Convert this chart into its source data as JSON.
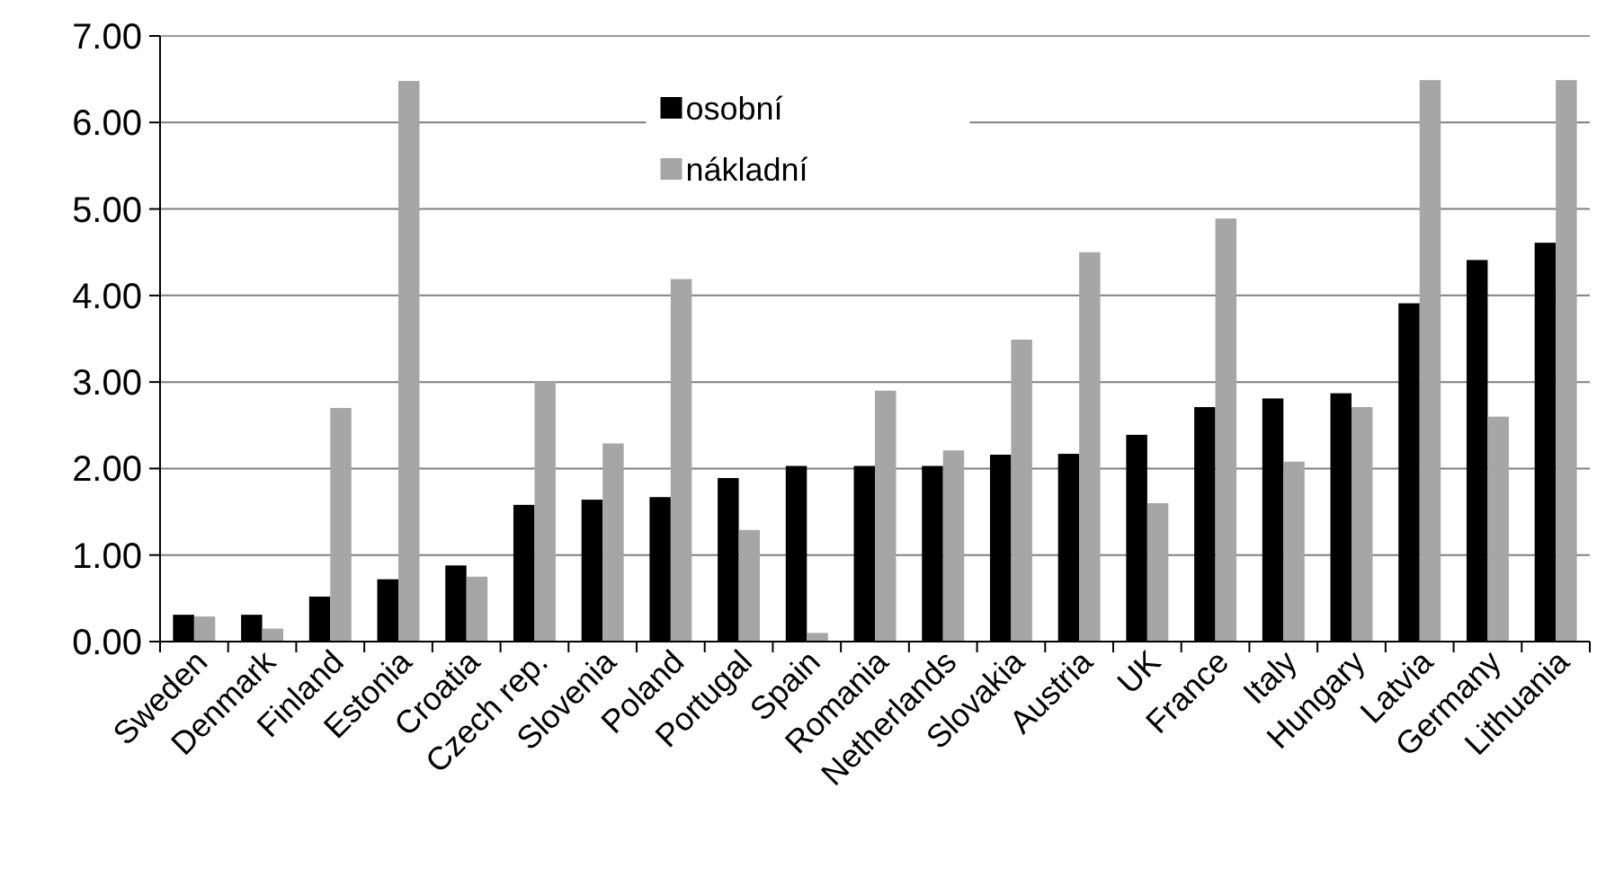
{
  "chart_data": {
    "type": "bar",
    "categories": [
      "Sweden",
      "Denmark",
      "Finland",
      "Estonia",
      "Croatia",
      "Czech rep.",
      "Slovenia",
      "Poland",
      "Portugal",
      "Spain",
      "Romania",
      "Netherlands",
      "Slovakia",
      "Austria",
      "UK",
      "France",
      "Italy",
      "Hungary",
      "Latvia",
      "Germany",
      "Lithuania"
    ],
    "series": [
      {
        "name": "osobní",
        "color": "#000000",
        "values": [
          0.31,
          0.31,
          0.52,
          0.72,
          0.88,
          1.58,
          1.64,
          1.67,
          1.89,
          2.03,
          2.03,
          2.03,
          2.16,
          2.17,
          2.39,
          2.71,
          2.81,
          2.87,
          3.91,
          4.41,
          4.61
        ]
      },
      {
        "name": "nákladní",
        "color": "#a6a6a6",
        "values": [
          0.29,
          0.15,
          2.7,
          6.48,
          0.75,
          3.01,
          2.29,
          4.19,
          1.29,
          0.1,
          2.9,
          2.21,
          3.49,
          4.5,
          1.6,
          4.89,
          2.08,
          2.71,
          6.49,
          2.6,
          6.49
        ]
      }
    ],
    "ylim": [
      0,
      7
    ],
    "yticks": [
      {
        "value": 0,
        "label": "0.00"
      },
      {
        "value": 1,
        "label": "1.00"
      },
      {
        "value": 2,
        "label": "2.00"
      },
      {
        "value": 3,
        "label": "3.00"
      },
      {
        "value": 4,
        "label": "4.00"
      },
      {
        "value": 5,
        "label": "5.00"
      },
      {
        "value": 6,
        "label": "6.00"
      },
      {
        "value": 7,
        "label": "7.00"
      }
    ],
    "grid": "y",
    "legend": "top"
  }
}
